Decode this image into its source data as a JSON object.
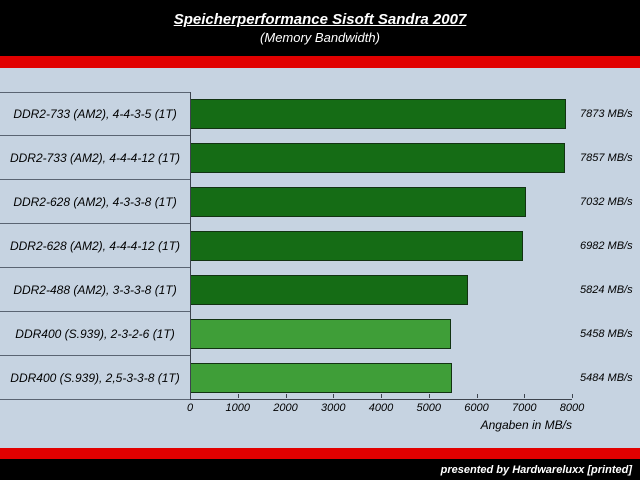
{
  "header": {
    "title": "Speicherperformance Sisoft Sandra 2007",
    "subtitle": "(Memory Bandwidth)"
  },
  "footer": {
    "credit": "presented by Hardwareluxx [printed]"
  },
  "colors": {
    "background": "#c6d3e1",
    "header_bg": "#000000",
    "stripe_red": "#e10000",
    "bar_dark_green": "#156c15",
    "bar_light_green": "#3f9e38"
  },
  "chart_data": {
    "type": "bar",
    "orientation": "horizontal",
    "title": "Speicherperformance Sisoft Sandra 2007",
    "subtitle": "(Memory Bandwidth)",
    "categories": [
      "DDR2-733 (AM2), 4-4-3-5 (1T)",
      "DDR2-733 (AM2), 4-4-4-12 (1T)",
      "DDR2-628 (AM2), 4-3-3-8 (1T)",
      "DDR2-628 (AM2), 4-4-4-12 (1T)",
      "DDR2-488 (AM2), 3-3-3-8 (1T)",
      "DDR400 (S.939), 2-3-2-6 (1T)",
      "DDR400 (S.939), 2,5-3-3-8 (1T)"
    ],
    "values": [
      7873,
      7857,
      7032,
      6982,
      5824,
      5458,
      5484
    ],
    "value_labels": [
      "7873 MB/s",
      "7857 MB/s",
      "7032 MB/s",
      "6982 MB/s",
      "5824 MB/s",
      "5458 MB/s",
      "5484 MB/s"
    ],
    "bar_colors": [
      "#156c15",
      "#156c15",
      "#156c15",
      "#156c15",
      "#156c15",
      "#3f9e38",
      "#3f9e38"
    ],
    "xlabel": "Angaben in MB/s",
    "ylabel": "",
    "xlim": [
      0,
      8000
    ],
    "xticks": [
      0,
      1000,
      2000,
      3000,
      4000,
      5000,
      6000,
      7000,
      8000
    ],
    "grid": false,
    "legend": false
  }
}
